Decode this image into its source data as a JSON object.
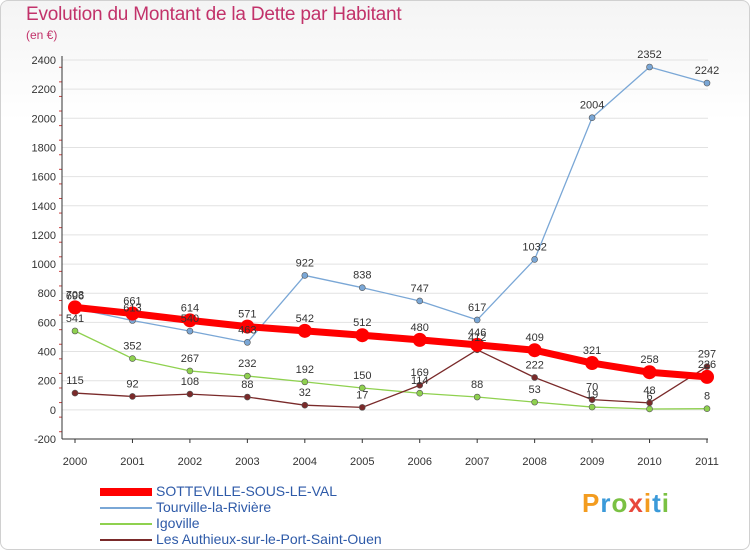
{
  "header": {
    "title": "Evolution du Montant de la Dette par Habitant",
    "unit": "(en €)"
  },
  "logo": {
    "letters": [
      "P",
      "r",
      "o",
      "x",
      "i",
      "t",
      "i"
    ],
    "colors": [
      "#f39c1f",
      "#3b9ad9",
      "#7ac143",
      "#e8483c",
      "#f39c1f",
      "#3b9ad9",
      "#7ac143"
    ]
  },
  "chart_data": {
    "type": "line",
    "title": "Evolution du Montant de la Dette par Habitant",
    "ylabel": "(en €)",
    "xlabel": "",
    "ylim": [
      -200,
      2400
    ],
    "yticks": [
      -200,
      0,
      200,
      400,
      600,
      800,
      1000,
      1200,
      1400,
      1600,
      1800,
      2000,
      2200,
      2400
    ],
    "x": [
      "2000",
      "2001",
      "2002",
      "2003",
      "2004",
      "2005",
      "2006",
      "2007",
      "2008",
      "2009",
      "2010",
      "2011"
    ],
    "grid": "horizontal",
    "legend": "bottom-left",
    "series": [
      {
        "name": "SOTTEVILLE-SOUS-LE-VAL",
        "color": "#ff0000",
        "width": 7,
        "marker": 7,
        "values": [
          703,
          661,
          614,
          571,
          542,
          512,
          480,
          446,
          409,
          321,
          258,
          226
        ]
      },
      {
        "name": "Tourville-la-Rivière",
        "color": "#7aa7d6",
        "width": 1.3,
        "marker": 3,
        "values": [
          696,
          613,
          540,
          463,
          922,
          838,
          747,
          617,
          1032,
          2004,
          2352,
          2242
        ]
      },
      {
        "name": "Igoville",
        "color": "#8fd14f",
        "width": 1.3,
        "marker": 3,
        "values": [
          541,
          352,
          267,
          232,
          192,
          150,
          114,
          88,
          53,
          19,
          6,
          8
        ]
      },
      {
        "name": "Les Authieux-sur-le-Port-Saint-Ouen",
        "color": "#7a2a2a",
        "width": 1.3,
        "marker": 3,
        "values": [
          115,
          92,
          108,
          88,
          32,
          17,
          169,
          412,
          222,
          70,
          48,
          297
        ]
      }
    ]
  }
}
